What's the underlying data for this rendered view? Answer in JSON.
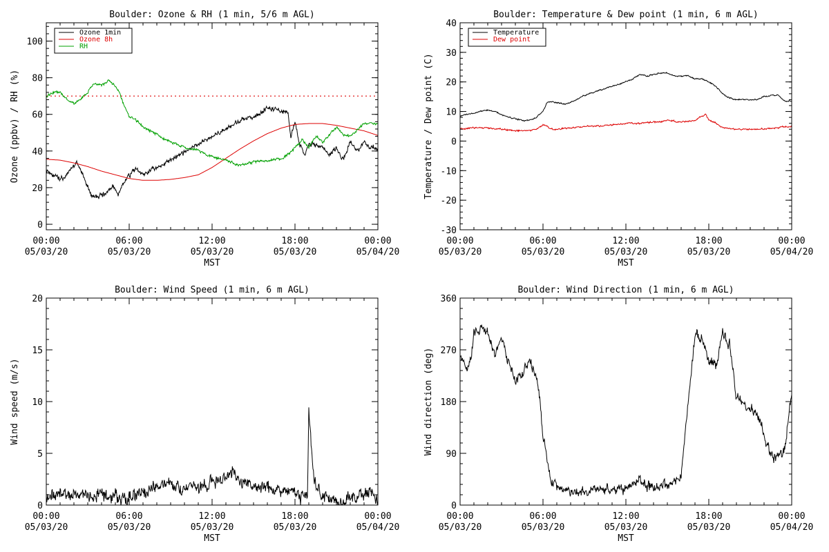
{
  "page": {
    "background": "#ffffff"
  },
  "time_ticks": {
    "hours": [
      "00:00",
      "06:00",
      "12:00",
      "18:00",
      "00:00"
    ],
    "dates": [
      "05/03/20",
      "05/03/20",
      "05/03/20",
      "05/03/20",
      "05/04/20"
    ],
    "xlabel": "MST"
  },
  "chart_data": [
    {
      "id": "ozone_rh",
      "type": "line",
      "title": "Boulder: Ozone & RH (1 min, 5/6 m AGL)",
      "xlabel": "MST",
      "ylabel": "Ozone (ppbv) / RH (%)",
      "xlim_hours": [
        0,
        24
      ],
      "ylim": [
        -3,
        110
      ],
      "yticks": [
        0,
        20,
        40,
        60,
        80,
        100
      ],
      "legend": "top-left",
      "reference_line": {
        "y": 70,
        "color": "#dd0000",
        "style": "dotted"
      },
      "series": [
        {
          "name": "Ozone 1min",
          "color": "#000000",
          "noise": 1.8,
          "seed": 11,
          "x": [
            0,
            0.5,
            1,
            1.5,
            2,
            2.2,
            2.6,
            3,
            3.3,
            3.8,
            4.3,
            4.8,
            5.2,
            5.6,
            6,
            6.5,
            7,
            7.5,
            8,
            9,
            10,
            11,
            12,
            13,
            14,
            14.5,
            15,
            15.5,
            16,
            16.5,
            17,
            17.5,
            17.7,
            18,
            18.3,
            18.7,
            19,
            19.5,
            20,
            20.5,
            21,
            21.5,
            22,
            22.5,
            23,
            23.5,
            24
          ],
          "y": [
            30,
            27,
            24,
            27,
            32,
            34,
            28,
            20,
            15,
            15,
            17,
            21,
            16,
            23,
            27,
            30,
            27,
            29,
            31,
            35,
            39,
            44,
            48,
            52,
            56,
            58,
            59,
            61,
            64,
            63,
            62,
            61,
            48,
            57,
            44,
            38,
            44,
            43,
            42,
            38,
            42,
            35,
            45,
            40,
            45,
            42,
            41
          ]
        },
        {
          "name": "Ozone 8h",
          "color": "#dd0000",
          "noise": 0,
          "seed": 0,
          "x": [
            0,
            1,
            2,
            3,
            4,
            5,
            6,
            6.5,
            7,
            8,
            9,
            10,
            11,
            12,
            13,
            14,
            15,
            16,
            17,
            18,
            19,
            20,
            21,
            22,
            23,
            24
          ],
          "y": [
            35.5,
            35,
            33.5,
            31.5,
            29,
            27,
            25,
            24.5,
            24,
            24,
            24.5,
            25.5,
            27,
            31,
            36,
            41,
            45.5,
            49.5,
            52.5,
            54.5,
            55,
            55,
            54,
            52.5,
            51,
            48.5
          ]
        },
        {
          "name": "RH",
          "color": "#00a000",
          "noise": 1.0,
          "seed": 23,
          "x": [
            0,
            0.5,
            1,
            1.5,
            2,
            2.5,
            3,
            3.5,
            4,
            4.5,
            5,
            5.3,
            5.6,
            6,
            6.5,
            7,
            7.5,
            8,
            9,
            10,
            11,
            12,
            13,
            14,
            15,
            16,
            17,
            17.5,
            18,
            18.5,
            19,
            19.5,
            20,
            21,
            21.5,
            22,
            23,
            24
          ],
          "y": [
            70,
            72,
            72,
            68,
            66,
            68,
            72,
            77,
            76,
            78,
            76,
            72,
            65,
            59,
            57,
            53,
            51,
            49,
            45,
            42,
            40,
            37,
            35,
            32,
            34,
            35,
            36,
            38,
            42,
            46,
            42,
            48,
            45,
            53,
            49,
            48,
            55,
            55
          ]
        }
      ]
    },
    {
      "id": "temperature_dewpoint",
      "type": "line",
      "title": "Boulder: Temperature & Dew point (1 min, 6 m AGL)",
      "xlabel": "MST",
      "ylabel": "Temperature / Dew point (C)",
      "xlim_hours": [
        0,
        24
      ],
      "ylim": [
        -30,
        40
      ],
      "yticks": [
        -30,
        -20,
        -10,
        0,
        10,
        20,
        30,
        40
      ],
      "legend": "top-left",
      "series": [
        {
          "name": "Temperature",
          "color": "#000000",
          "noise": 0.3,
          "seed": 31,
          "x": [
            0,
            0.5,
            1,
            1.5,
            2,
            2.5,
            3,
            3.5,
            4,
            4.5,
            5,
            5.5,
            6,
            6.3,
            6.5,
            7,
            7.5,
            8,
            9,
            10,
            11,
            12,
            12.5,
            13,
            13.5,
            14,
            14.5,
            15,
            15.5,
            16,
            16.5,
            17,
            17.5,
            18,
            18.5,
            19,
            19.5,
            20,
            21,
            21.5,
            22,
            22.5,
            23,
            23.5,
            24
          ],
          "y": [
            8.5,
            9,
            9.5,
            10,
            10.5,
            10,
            9,
            8,
            7.5,
            7,
            7,
            8,
            10,
            13,
            13.5,
            13,
            12.5,
            13,
            15.5,
            17,
            18.5,
            20,
            21,
            22.5,
            22,
            22.5,
            23,
            23,
            22,
            22,
            22,
            21,
            21,
            20,
            18.5,
            16,
            14.5,
            14,
            14,
            14,
            15,
            15.5,
            15.5,
            13.5,
            13.5
          ]
        },
        {
          "name": "Dew point",
          "color": "#dd0000",
          "noise": 0.35,
          "seed": 41,
          "x": [
            0,
            1,
            2,
            3,
            4,
            5,
            5.5,
            6,
            6.3,
            6.6,
            7,
            8,
            9,
            10,
            11,
            12,
            13,
            14,
            14.5,
            15,
            16,
            17,
            17.5,
            17.8,
            18,
            18.5,
            19,
            20,
            21,
            22,
            23,
            24
          ],
          "y": [
            4,
            4.5,
            4.5,
            4,
            3.5,
            3.5,
            4,
            5.5,
            5,
            4,
            4,
            4.5,
            5,
            5,
            5.5,
            6,
            6,
            6.5,
            6.5,
            7,
            6.5,
            7,
            8.5,
            9,
            7,
            6,
            4.5,
            4,
            4,
            4,
            4.5,
            5
          ]
        }
      ]
    },
    {
      "id": "wind_speed",
      "type": "line",
      "title": "Boulder: Wind Speed (1 min, 6 m AGL)",
      "xlabel": "MST",
      "ylabel": "Wind speed (m/s)",
      "xlim_hours": [
        0,
        24
      ],
      "ylim": [
        0,
        20
      ],
      "yticks": [
        0,
        5,
        10,
        15,
        20
      ],
      "series": [
        {
          "name": "",
          "color": "#000000",
          "noise": 0.9,
          "seed": 53,
          "clamp_min": 0,
          "x": [
            0,
            1,
            2,
            3,
            4,
            5,
            6,
            7,
            8,
            9,
            10,
            11,
            12,
            13,
            13.5,
            14,
            15,
            16,
            17,
            18,
            18.9,
            19,
            19.2,
            19.5,
            20,
            21,
            22,
            23,
            23.5,
            24
          ],
          "y": [
            1,
            1.2,
            1,
            0.8,
            1,
            0.8,
            0.7,
            1.2,
            1.8,
            2,
            1.8,
            1.8,
            2.2,
            2.5,
            3.3,
            2.2,
            1.8,
            1.8,
            1.4,
            1,
            1,
            9.5,
            5,
            2,
            0.8,
            0.5,
            0.7,
            1.2,
            1.5,
            0.2
          ]
        }
      ]
    },
    {
      "id": "wind_direction",
      "type": "line",
      "title": "Boulder: Wind Direction (1 min, 6 m AGL)",
      "xlabel": "MST",
      "ylabel": "Wind direction (deg)",
      "xlim_hours": [
        0,
        24
      ],
      "ylim": [
        0,
        360
      ],
      "yticks": [
        0,
        90,
        180,
        270,
        360
      ],
      "series": [
        {
          "name": "",
          "color": "#000000",
          "noise": 12,
          "seed": 67,
          "wrap": 360,
          "x": [
            0,
            0.2,
            0.5,
            0.8,
            1,
            1.5,
            2,
            2.5,
            3,
            3.5,
            4,
            4.5,
            5,
            5.3,
            5.7,
            6,
            6.3,
            6.6,
            7,
            8,
            9,
            10,
            11,
            12,
            13,
            14,
            15,
            16,
            17,
            17.5,
            18,
            18.5,
            19,
            19.5,
            20,
            20.5,
            21,
            21.5,
            22,
            22.5,
            23,
            23.5,
            24
          ],
          "y": [
            260,
            250,
            230,
            260,
            300,
            310,
            300,
            260,
            290,
            250,
            220,
            230,
            250,
            240,
            200,
            120,
            80,
            40,
            30,
            25,
            20,
            30,
            25,
            30,
            40,
            30,
            35,
            50,
            300,
            290,
            250,
            240,
            300,
            280,
            190,
            180,
            170,
            160,
            120,
            90,
            80,
            100,
            200
          ]
        }
      ]
    }
  ]
}
